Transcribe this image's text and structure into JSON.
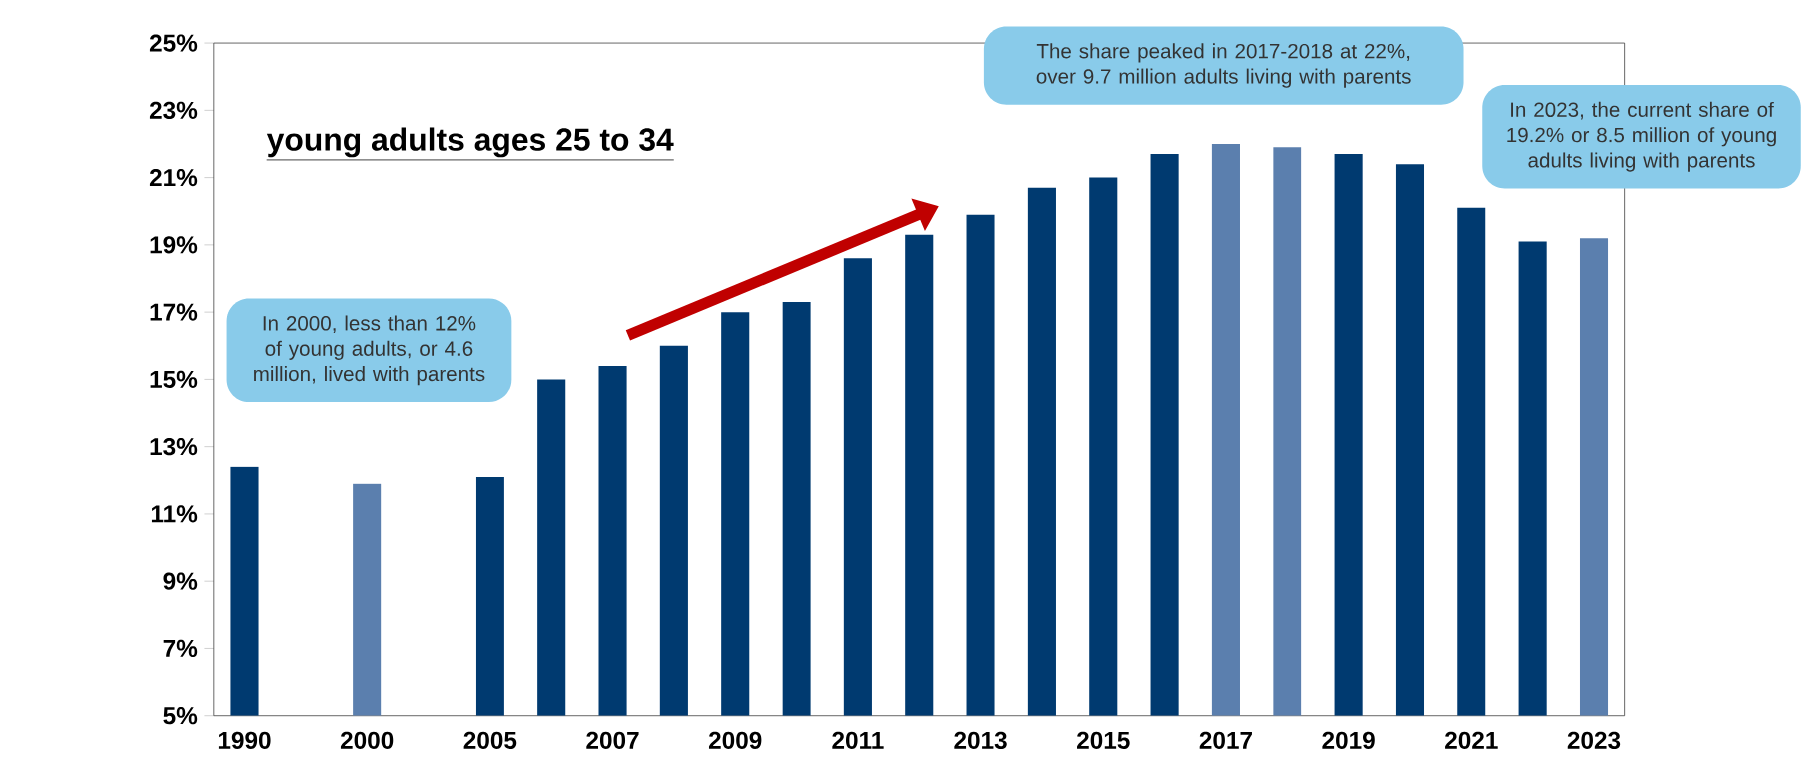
{
  "chart_data": {
    "type": "bar",
    "title": "young adults ages 25 to 34",
    "categories": [
      "1990",
      null,
      "2000",
      null,
      "2005",
      null,
      "2007",
      null,
      "2009",
      null,
      "2011",
      null,
      "2013",
      null,
      "2015",
      null,
      "2017",
      null,
      "2019",
      null,
      "2021",
      null,
      "2023"
    ],
    "values": [
      12.4,
      null,
      11.9,
      null,
      12.1,
      15.0,
      15.4,
      16.0,
      17.0,
      17.3,
      18.6,
      19.3,
      19.9,
      20.7,
      21.0,
      21.7,
      22.0,
      21.9,
      21.7,
      21.4,
      20.1,
      19.1,
      19.2
    ],
    "colors": [
      "#003a70",
      null,
      "#5b7fae",
      null,
      "#003a70",
      "#003a70",
      "#003a70",
      "#003a70",
      "#003a70",
      "#003a70",
      "#003a70",
      "#003a70",
      "#003a70",
      "#003a70",
      "#003a70",
      "#003a70",
      "#5b7fae",
      "#5b7fae",
      "#003a70",
      "#003a70",
      "#003a70",
      "#003a70",
      "#5b7fae"
    ],
    "ylim": [
      5,
      25
    ],
    "yticks": [
      {
        "value": 5,
        "label": "5%"
      },
      {
        "value": 7,
        "label": "7%"
      },
      {
        "value": 9,
        "label": "9%"
      },
      {
        "value": 11,
        "label": "11%"
      },
      {
        "value": 13,
        "label": "13%"
      },
      {
        "value": 15,
        "label": "15%"
      },
      {
        "value": 17,
        "label": "17%"
      },
      {
        "value": 19,
        "label": "19%"
      },
      {
        "value": 21,
        "label": "21%"
      },
      {
        "value": 23,
        "label": "23%"
      },
      {
        "value": 25,
        "label": "25%"
      }
    ],
    "annotations": [
      "In 2000, less than 12% of young adults, or 4.6 million, lived with parents",
      "The share peaked in 2017-2018 at 22%, over 9.7 million adults living with parents",
      "In 2023, the current share of 19.2% or 8.5 million of young adults living with parents"
    ]
  }
}
